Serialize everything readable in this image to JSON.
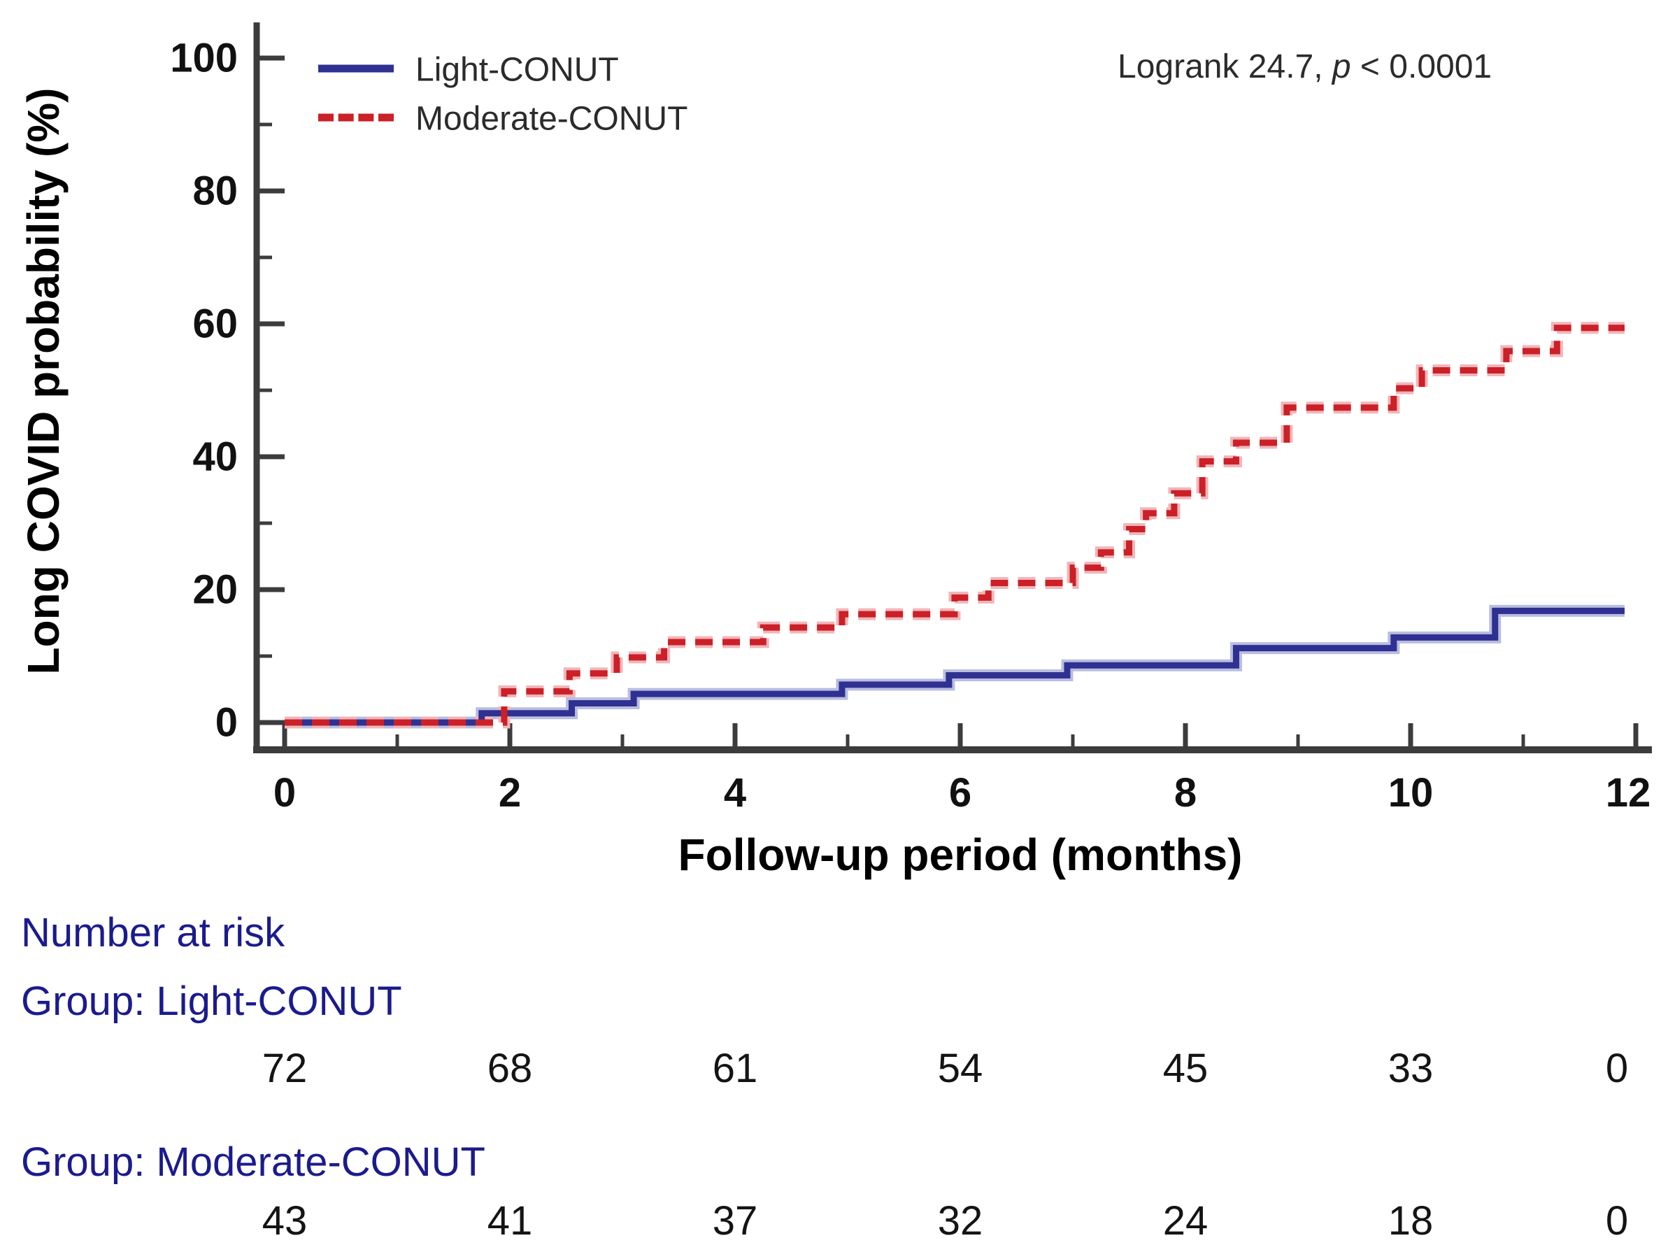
{
  "chart_data": {
    "type": "line",
    "subtype": "kaplan-meier-step-cumulative-incidence",
    "title": "",
    "xlabel": "Follow-up period (months)",
    "ylabel": "Long COVID probability (%)",
    "xlim": [
      0,
      12
    ],
    "ylim": [
      0,
      100
    ],
    "grid": false,
    "legend_position": "top-left-inside",
    "x_major_ticks": [
      0,
      2,
      4,
      6,
      8,
      10,
      12
    ],
    "x_minor_ticks": [
      1,
      3,
      5,
      7,
      9,
      11
    ],
    "y_major_ticks": [
      0,
      20,
      40,
      60,
      80,
      100
    ],
    "y_minor_ticks": [
      10,
      30,
      50,
      70,
      90
    ],
    "annotation": {
      "text_before": "Logrank 24.7, ",
      "p_symbol": "p",
      "text_after": " < 0.0001"
    },
    "series": [
      {
        "name": "Light-CONUT",
        "style": "solid",
        "color": "#2e3191",
        "halo_color": "#b9bddf",
        "end_x": 11.9,
        "steps": [
          [
            0,
            0
          ],
          [
            1.75,
            1.4
          ],
          [
            2.55,
            2.9
          ],
          [
            3.1,
            4.3
          ],
          [
            4.95,
            5.7
          ],
          [
            5.9,
            7.1
          ],
          [
            6.95,
            8.6
          ],
          [
            8.45,
            11.2
          ],
          [
            9.85,
            12.8
          ],
          [
            10.75,
            16.8
          ]
        ]
      },
      {
        "name": "Moderate-CONUT",
        "style": "dashed",
        "color": "#cb2027",
        "halo_color": "#f0b6ba",
        "end_x": 11.9,
        "steps": [
          [
            0,
            0
          ],
          [
            1.95,
            4.7
          ],
          [
            2.53,
            7.4
          ],
          [
            2.95,
            9.8
          ],
          [
            3.37,
            12.1
          ],
          [
            4.25,
            14.3
          ],
          [
            4.95,
            16.3
          ],
          [
            5.95,
            18.8
          ],
          [
            6.25,
            21.0
          ],
          [
            7.0,
            23.3
          ],
          [
            7.25,
            25.6
          ],
          [
            7.5,
            29.1
          ],
          [
            7.65,
            31.5
          ],
          [
            7.9,
            34.5
          ],
          [
            8.15,
            39.3
          ],
          [
            8.45,
            42.1
          ],
          [
            8.9,
            47.4
          ],
          [
            9.85,
            50.3
          ],
          [
            10.1,
            53.0
          ],
          [
            10.85,
            55.9
          ],
          [
            11.3,
            59.4
          ]
        ]
      }
    ]
  },
  "at_risk": {
    "header": "Number at risk",
    "months": [
      0,
      2,
      4,
      6,
      8,
      10,
      12
    ],
    "groups": [
      {
        "label": "Group: Light-CONUT",
        "values": [
          "72",
          "68",
          "61",
          "54",
          "45",
          "33",
          "0"
        ]
      },
      {
        "label": "Group: Moderate-CONUT",
        "values": [
          "43",
          "41",
          "37",
          "32",
          "24",
          "18",
          "0"
        ]
      }
    ]
  },
  "colors": {
    "axis": "#3c3c3c",
    "light_conut": "#2e3191",
    "moderate_conut": "#cb2027",
    "risk_header_text": "#1b1b8e"
  }
}
